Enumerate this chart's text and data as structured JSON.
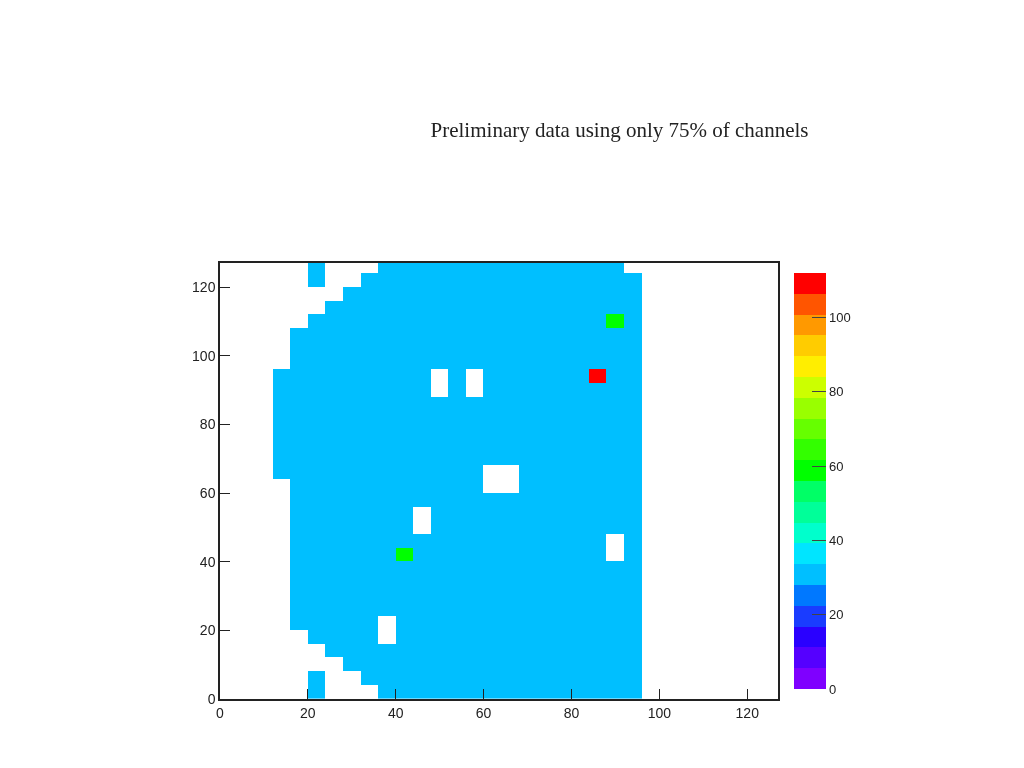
{
  "chart_data": {
    "type": "heatmap",
    "title": "Preliminary data using only 75% of channels",
    "x": [
      2,
      6,
      10,
      14,
      18,
      22,
      26,
      30,
      34,
      38,
      42,
      46,
      50,
      54,
      58,
      62,
      66,
      70,
      74,
      78,
      82,
      86,
      90,
      94,
      98,
      102,
      106,
      110,
      114,
      118,
      122,
      126
    ],
    "y": [
      2,
      6,
      10,
      14,
      18,
      22,
      26,
      30,
      34,
      38,
      42,
      46,
      50,
      54,
      58,
      62,
      66,
      70,
      74,
      78,
      82,
      86,
      90,
      94,
      98,
      102,
      106,
      110,
      114,
      118,
      122,
      126
    ],
    "cells": [
      [
        null,
        null,
        null,
        null,
        null,
        30,
        null,
        null,
        null,
        30,
        30,
        30,
        30,
        30,
        30,
        30,
        30,
        30,
        30,
        30,
        30,
        30,
        30,
        30,
        null,
        null,
        null,
        null,
        null,
        null,
        null,
        null
      ],
      [
        null,
        null,
        null,
        null,
        null,
        30,
        null,
        null,
        30,
        30,
        30,
        30,
        30,
        30,
        30,
        30,
        30,
        30,
        30,
        30,
        30,
        30,
        30,
        30,
        null,
        null,
        null,
        null,
        null,
        null,
        null,
        null
      ],
      [
        null,
        null,
        null,
        null,
        null,
        null,
        null,
        30,
        30,
        30,
        30,
        30,
        30,
        30,
        30,
        30,
        30,
        30,
        30,
        30,
        30,
        30,
        30,
        30,
        null,
        null,
        null,
        null,
        null,
        null,
        null,
        null
      ],
      [
        null,
        null,
        null,
        null,
        null,
        null,
        30,
        30,
        30,
        30,
        30,
        30,
        30,
        30,
        30,
        30,
        30,
        30,
        30,
        30,
        30,
        30,
        30,
        30,
        null,
        null,
        null,
        null,
        null,
        null,
        null,
        null
      ],
      [
        null,
        null,
        null,
        null,
        null,
        30,
        30,
        30,
        30,
        null,
        30,
        30,
        30,
        30,
        30,
        30,
        30,
        30,
        30,
        30,
        30,
        30,
        30,
        30,
        null,
        null,
        null,
        null,
        null,
        null,
        null,
        null
      ],
      [
        null,
        null,
        null,
        null,
        30,
        30,
        30,
        30,
        30,
        null,
        30,
        30,
        30,
        30,
        30,
        30,
        30,
        30,
        30,
        30,
        30,
        30,
        30,
        30,
        null,
        null,
        null,
        null,
        null,
        null,
        null,
        null
      ],
      [
        null,
        null,
        null,
        null,
        30,
        30,
        30,
        30,
        30,
        30,
        30,
        30,
        30,
        30,
        30,
        30,
        30,
        30,
        30,
        30,
        30,
        30,
        30,
        30,
        null,
        null,
        null,
        null,
        null,
        null,
        null,
        null
      ],
      [
        null,
        null,
        null,
        null,
        30,
        30,
        30,
        30,
        30,
        30,
        30,
        30,
        30,
        30,
        30,
        30,
        30,
        30,
        30,
        30,
        30,
        30,
        30,
        30,
        null,
        null,
        null,
        null,
        null,
        null,
        null,
        null
      ],
      [
        null,
        null,
        null,
        null,
        30,
        30,
        30,
        30,
        30,
        30,
        30,
        30,
        30,
        30,
        30,
        30,
        30,
        30,
        30,
        30,
        30,
        30,
        30,
        30,
        null,
        null,
        null,
        null,
        null,
        null,
        null,
        null
      ],
      [
        null,
        null,
        null,
        null,
        30,
        30,
        30,
        30,
        30,
        30,
        30,
        30,
        30,
        30,
        30,
        30,
        30,
        30,
        30,
        30,
        30,
        30,
        30,
        30,
        null,
        null,
        null,
        null,
        null,
        null,
        null,
        null
      ],
      [
        null,
        null,
        null,
        null,
        30,
        30,
        30,
        30,
        30,
        30,
        58,
        30,
        30,
        30,
        30,
        30,
        30,
        30,
        30,
        30,
        30,
        30,
        null,
        30,
        null,
        null,
        null,
        null,
        null,
        null,
        null,
        null
      ],
      [
        null,
        null,
        null,
        null,
        30,
        30,
        30,
        30,
        30,
        30,
        30,
        30,
        30,
        30,
        30,
        30,
        30,
        30,
        30,
        30,
        30,
        30,
        null,
        30,
        null,
        null,
        null,
        null,
        null,
        null,
        null,
        null
      ],
      [
        null,
        null,
        null,
        null,
        30,
        30,
        30,
        30,
        30,
        30,
        30,
        null,
        30,
        30,
        30,
        30,
        30,
        30,
        30,
        30,
        30,
        30,
        30,
        30,
        null,
        null,
        null,
        null,
        null,
        null,
        null,
        null
      ],
      [
        null,
        null,
        null,
        null,
        30,
        30,
        30,
        30,
        30,
        30,
        30,
        null,
        30,
        30,
        30,
        30,
        30,
        30,
        30,
        30,
        30,
        30,
        30,
        30,
        null,
        null,
        null,
        null,
        null,
        null,
        null,
        null
      ],
      [
        null,
        null,
        null,
        null,
        30,
        30,
        30,
        30,
        30,
        30,
        30,
        30,
        30,
        30,
        30,
        30,
        30,
        30,
        30,
        30,
        30,
        30,
        30,
        30,
        null,
        null,
        null,
        null,
        null,
        null,
        null,
        null
      ],
      [
        null,
        null,
        null,
        null,
        30,
        30,
        30,
        30,
        30,
        30,
        30,
        30,
        30,
        30,
        30,
        null,
        null,
        30,
        30,
        30,
        30,
        30,
        30,
        30,
        null,
        null,
        null,
        null,
        null,
        null,
        null,
        null
      ],
      [
        null,
        null,
        null,
        30,
        30,
        30,
        30,
        30,
        30,
        30,
        30,
        30,
        30,
        30,
        30,
        null,
        null,
        30,
        30,
        30,
        30,
        30,
        30,
        30,
        null,
        null,
        null,
        null,
        null,
        null,
        null,
        null
      ],
      [
        null,
        null,
        null,
        30,
        30,
        30,
        30,
        30,
        30,
        30,
        30,
        30,
        30,
        30,
        30,
        30,
        30,
        30,
        30,
        30,
        30,
        30,
        30,
        30,
        null,
        null,
        null,
        null,
        null,
        null,
        null,
        null
      ],
      [
        null,
        null,
        null,
        30,
        30,
        30,
        30,
        30,
        30,
        30,
        30,
        30,
        30,
        30,
        30,
        30,
        30,
        30,
        30,
        30,
        30,
        30,
        30,
        30,
        null,
        null,
        null,
        null,
        null,
        null,
        null,
        null
      ],
      [
        null,
        null,
        null,
        30,
        30,
        30,
        30,
        30,
        30,
        30,
        30,
        30,
        30,
        30,
        30,
        30,
        30,
        30,
        30,
        30,
        30,
        30,
        30,
        30,
        null,
        null,
        null,
        null,
        null,
        null,
        null,
        null
      ],
      [
        null,
        null,
        null,
        30,
        30,
        30,
        30,
        30,
        30,
        30,
        30,
        30,
        30,
        30,
        30,
        30,
        30,
        30,
        30,
        30,
        30,
        30,
        30,
        30,
        null,
        null,
        null,
        null,
        null,
        null,
        null,
        null
      ],
      [
        null,
        null,
        null,
        30,
        30,
        30,
        30,
        30,
        30,
        30,
        30,
        30,
        30,
        30,
        30,
        30,
        30,
        30,
        30,
        30,
        30,
        30,
        30,
        30,
        null,
        null,
        null,
        null,
        null,
        null,
        null,
        null
      ],
      [
        null,
        null,
        null,
        30,
        30,
        30,
        30,
        30,
        30,
        30,
        30,
        30,
        null,
        30,
        null,
        30,
        30,
        30,
        30,
        30,
        30,
        30,
        30,
        30,
        null,
        null,
        null,
        null,
        null,
        null,
        null,
        null
      ],
      [
        null,
        null,
        null,
        30,
        30,
        30,
        30,
        30,
        30,
        30,
        30,
        30,
        null,
        30,
        null,
        30,
        30,
        30,
        30,
        30,
        30,
        110,
        30,
        30,
        null,
        null,
        null,
        null,
        null,
        null,
        null,
        null
      ],
      [
        null,
        null,
        null,
        null,
        30,
        30,
        30,
        30,
        30,
        30,
        30,
        30,
        30,
        30,
        30,
        30,
        30,
        30,
        30,
        30,
        30,
        30,
        30,
        30,
        null,
        null,
        null,
        null,
        null,
        null,
        null,
        null
      ],
      [
        null,
        null,
        null,
        null,
        30,
        30,
        30,
        30,
        30,
        30,
        30,
        30,
        30,
        30,
        30,
        30,
        30,
        30,
        30,
        30,
        30,
        30,
        30,
        30,
        null,
        null,
        null,
        null,
        null,
        null,
        null,
        null
      ],
      [
        null,
        null,
        null,
        null,
        30,
        30,
        30,
        30,
        30,
        30,
        30,
        30,
        30,
        30,
        30,
        30,
        30,
        30,
        30,
        30,
        30,
        30,
        30,
        30,
        null,
        null,
        null,
        null,
        null,
        null,
        null,
        null
      ],
      [
        null,
        null,
        null,
        null,
        null,
        30,
        30,
        30,
        30,
        30,
        30,
        30,
        30,
        30,
        30,
        30,
        30,
        30,
        30,
        30,
        30,
        30,
        58,
        30,
        null,
        null,
        null,
        null,
        null,
        null,
        null,
        null
      ],
      [
        null,
        null,
        null,
        null,
        null,
        null,
        30,
        30,
        30,
        30,
        30,
        30,
        30,
        30,
        30,
        30,
        30,
        30,
        30,
        30,
        30,
        30,
        30,
        30,
        null,
        null,
        null,
        null,
        null,
        null,
        null,
        null
      ],
      [
        null,
        null,
        null,
        null,
        null,
        null,
        null,
        30,
        30,
        30,
        30,
        30,
        30,
        30,
        30,
        30,
        30,
        30,
        30,
        30,
        30,
        30,
        30,
        30,
        null,
        null,
        null,
        null,
        null,
        null,
        null,
        null
      ],
      [
        null,
        null,
        null,
        null,
        null,
        30,
        null,
        null,
        30,
        30,
        30,
        30,
        30,
        30,
        30,
        30,
        30,
        30,
        30,
        30,
        30,
        30,
        30,
        30,
        null,
        null,
        null,
        null,
        null,
        null,
        null,
        null
      ],
      [
        null,
        null,
        null,
        null,
        null,
        30,
        null,
        null,
        null,
        30,
        30,
        30,
        30,
        30,
        30,
        30,
        30,
        30,
        30,
        30,
        30,
        30,
        30,
        null,
        null,
        null,
        null,
        null,
        null,
        null,
        null,
        null
      ]
    ],
    "xlim": [
      0,
      127
    ],
    "ylim": [
      0,
      127
    ],
    "xticks": [
      0,
      20,
      40,
      60,
      80,
      100,
      120
    ],
    "yticks": [
      0,
      20,
      40,
      60,
      80,
      100,
      120
    ],
    "clim": [
      0,
      112
    ],
    "cticks": [
      0,
      20,
      40,
      60,
      80,
      100
    ]
  }
}
